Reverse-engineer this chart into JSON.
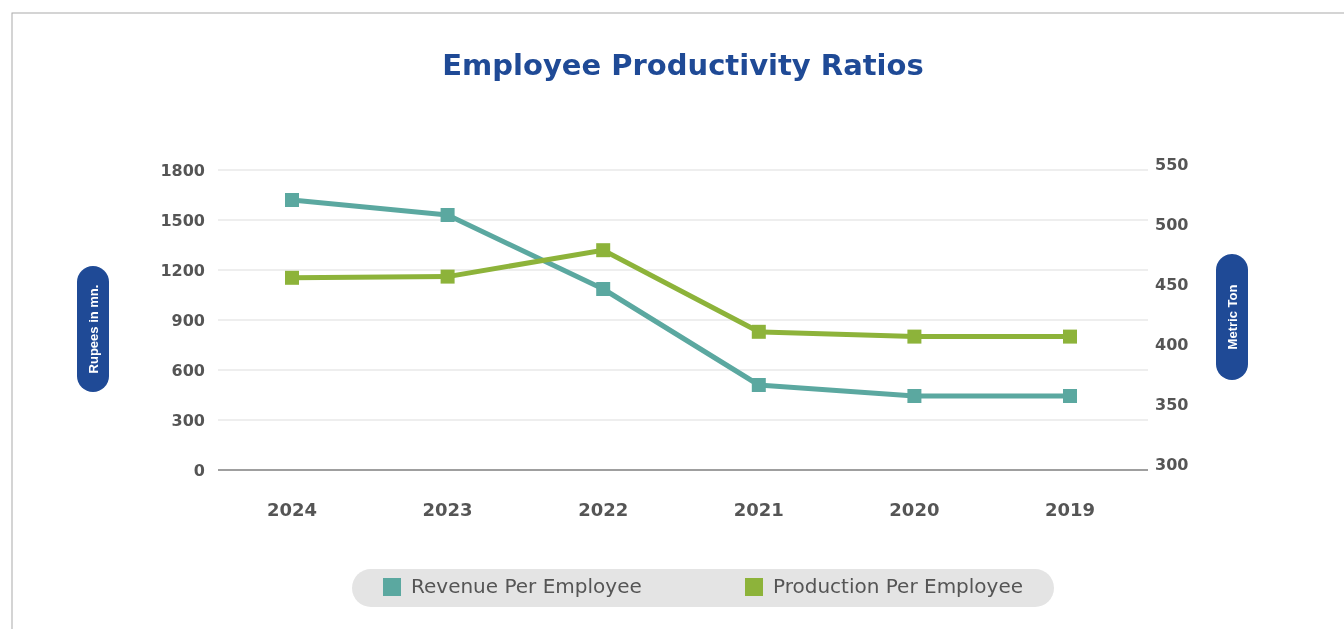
{
  "chart_data": {
    "type": "line",
    "title": "Employee Productivity Ratios",
    "ylabel": "Rupees in mn.",
    "y2label": "Metric Ton",
    "categories": [
      "2024",
      "2023",
      "2022",
      "2021",
      "2020",
      "2019"
    ],
    "series": [
      {
        "name": "Revenue Per Employee",
        "color": "#5ba8a0",
        "values": [
          1620,
          1530,
          1086,
          510,
          444,
          444
        ]
      },
      {
        "name": "Production Per Employee",
        "color": "#8db33a",
        "axis": "y2",
        "values": [
          456,
          457,
          479,
          411,
          407,
          407
        ]
      }
    ],
    "ylim": [
      0,
      1800
    ],
    "yticks": [
      0,
      300,
      600,
      900,
      1200,
      1500,
      1800
    ],
    "y2lim": [
      300,
      550
    ],
    "y2ticks": [
      300,
      350,
      400,
      450,
      500,
      550
    ],
    "grid": "y",
    "legend": "bottom",
    "marker": "square",
    "line_style": "solid"
  }
}
